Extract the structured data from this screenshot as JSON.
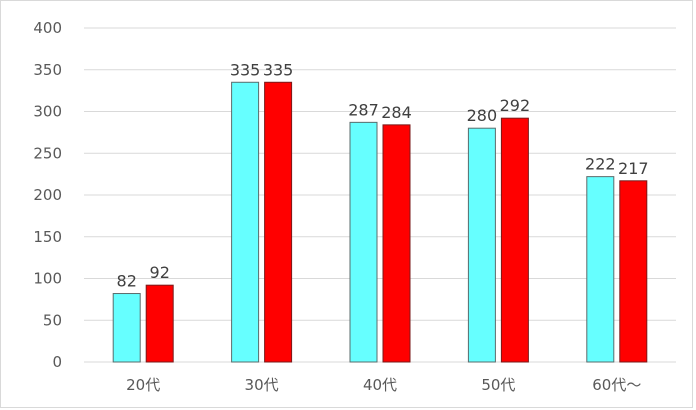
{
  "chart_data": {
    "type": "bar",
    "categories": [
      "20代",
      "30代",
      "40代",
      "50代",
      "60代～"
    ],
    "series": [
      {
        "values": [
          82,
          335,
          287,
          280,
          222
        ],
        "color": "#66ffff",
        "border": "#5a6b6b"
      },
      {
        "values": [
          92,
          335,
          284,
          292,
          217
        ],
        "color": "#ff0000",
        "border": "#7a1a1a"
      }
    ],
    "ylim": [
      0,
      400
    ],
    "yticks": [
      0,
      50,
      100,
      150,
      200,
      250,
      300,
      350,
      400
    ],
    "grid": true,
    "legend": "none",
    "data_labels": true
  }
}
